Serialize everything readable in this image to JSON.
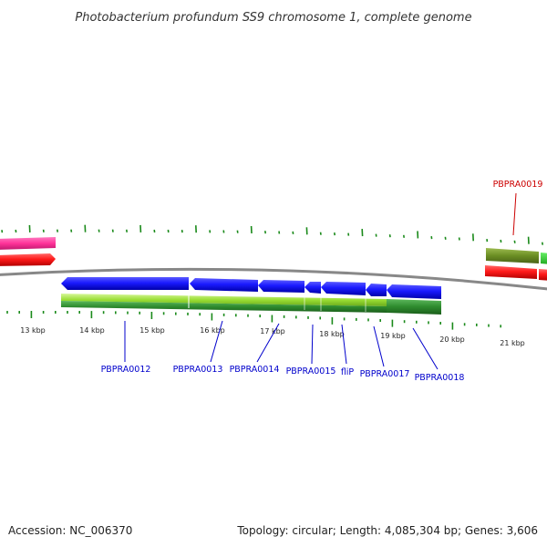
{
  "title": "Photobacterium profundum SS9 chromosome 1, complete genome",
  "footer": {
    "accession": "Accession: NC_006370",
    "topology": "Topology: circular; Length: 4,085,304 bp; Genes: 3,606"
  },
  "ticks": [
    "13 kbp",
    "14 kbp",
    "15 kbp",
    "16 kbp",
    "17 kbp",
    "18 kbp",
    "19 kbp",
    "20 kbp",
    "21 kbp"
  ],
  "genes": [
    {
      "label": "PBPRA0012",
      "color": "#0000cc"
    },
    {
      "label": "PBPRA0013",
      "color": "#0000cc"
    },
    {
      "label": "PBPRA0014",
      "color": "#0000cc"
    },
    {
      "label": "PBPRA0015",
      "color": "#0000cc"
    },
    {
      "label": "fliP",
      "color": "#0000cc"
    },
    {
      "label": "PBPRA0017",
      "color": "#0000cc"
    },
    {
      "label": "PBPRA0018",
      "color": "#0000cc"
    },
    {
      "label": "PBPRA0019",
      "color": "#cc0000"
    }
  ],
  "colors": {
    "forward_cds": "#1a1aff",
    "rtrna": "#ff1a1a",
    "pseudo": "#ff3399",
    "gc_high": "#99dd33",
    "gc_low": "#2e8b2e",
    "olive": "#6b8e23",
    "backbone": "#888888",
    "tick": "#1a8a1a"
  }
}
